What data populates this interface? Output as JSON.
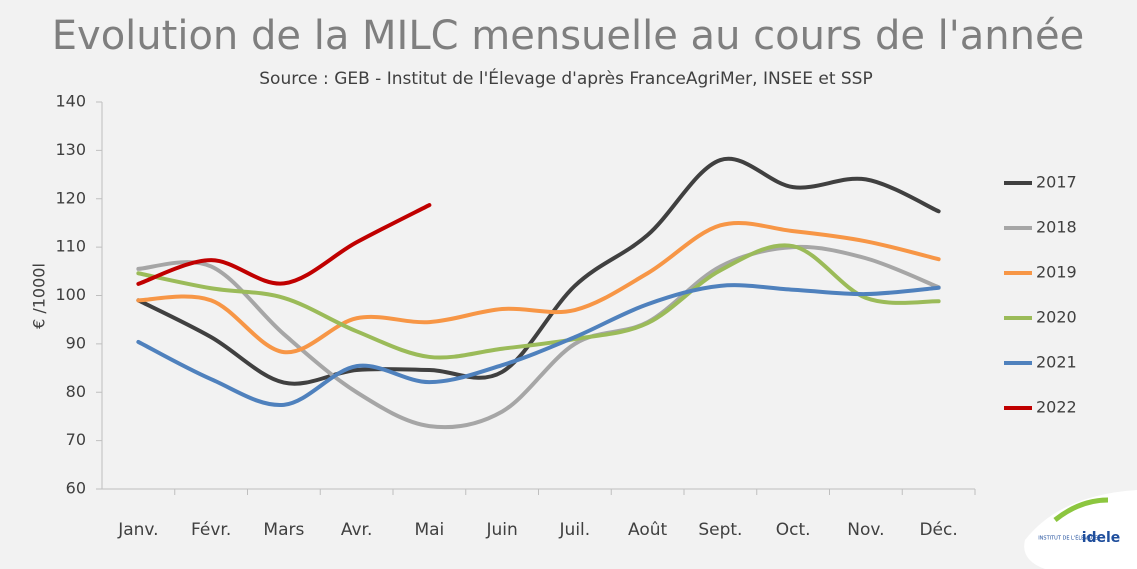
{
  "chart_data": {
    "type": "line",
    "title": "Evolution de la MILC mensuelle au cours de l'année",
    "subtitle": "Source : GEB - Institut de l'Élevage d'après FranceAgriMer, INSEE et SSP",
    "y_label": "€ /1000l",
    "categories": [
      "Janv.",
      "Févr.",
      "Mars",
      "Avr.",
      "Mai",
      "Juin",
      "Juil.",
      "Août",
      "Sept.",
      "Oct.",
      "Nov.",
      "Déc."
    ],
    "ylim": [
      60,
      140
    ],
    "yticks": [
      60,
      70,
      80,
      90,
      100,
      110,
      120,
      130,
      140
    ],
    "legend": "right",
    "smooth": true,
    "series": [
      {
        "name": "2017",
        "color": "#404040",
        "values": [
          99,
          91.4,
          82,
          84.6,
          84.6,
          84.2,
          102,
          112.5,
          128,
          122.4,
          124,
          117.4
        ]
      },
      {
        "name": "2018",
        "color": "#a6a6a6",
        "values": [
          105.5,
          106,
          92,
          80,
          73,
          76,
          90,
          94.5,
          106,
          110,
          107.7,
          101.7
        ]
      },
      {
        "name": "2019",
        "color": "#f79646",
        "values": [
          99,
          99,
          88.3,
          95.3,
          94.5,
          97.2,
          97,
          104.6,
          114.5,
          113.3,
          111.2,
          107.5
        ]
      },
      {
        "name": "2020",
        "color": "#9bbb59",
        "values": [
          104.6,
          101.5,
          99.5,
          92.6,
          87.3,
          89,
          91,
          94.3,
          105.2,
          110.2,
          99.5,
          98.8
        ]
      },
      {
        "name": "2021",
        "color": "#4f81bd",
        "values": [
          90.4,
          82.7,
          77.4,
          85.4,
          82.1,
          85.6,
          91.4,
          98.2,
          102,
          101.2,
          100.3,
          101.6
        ]
      },
      {
        "name": "2022",
        "color": "#c00000",
        "values": [
          102.4,
          107.3,
          102.5,
          111,
          118.7,
          null,
          null,
          null,
          null,
          null,
          null,
          null
        ]
      }
    ]
  },
  "logo": {
    "text": "idele",
    "subtext": "INSTITUT DE L'ÉLEVAGE"
  }
}
